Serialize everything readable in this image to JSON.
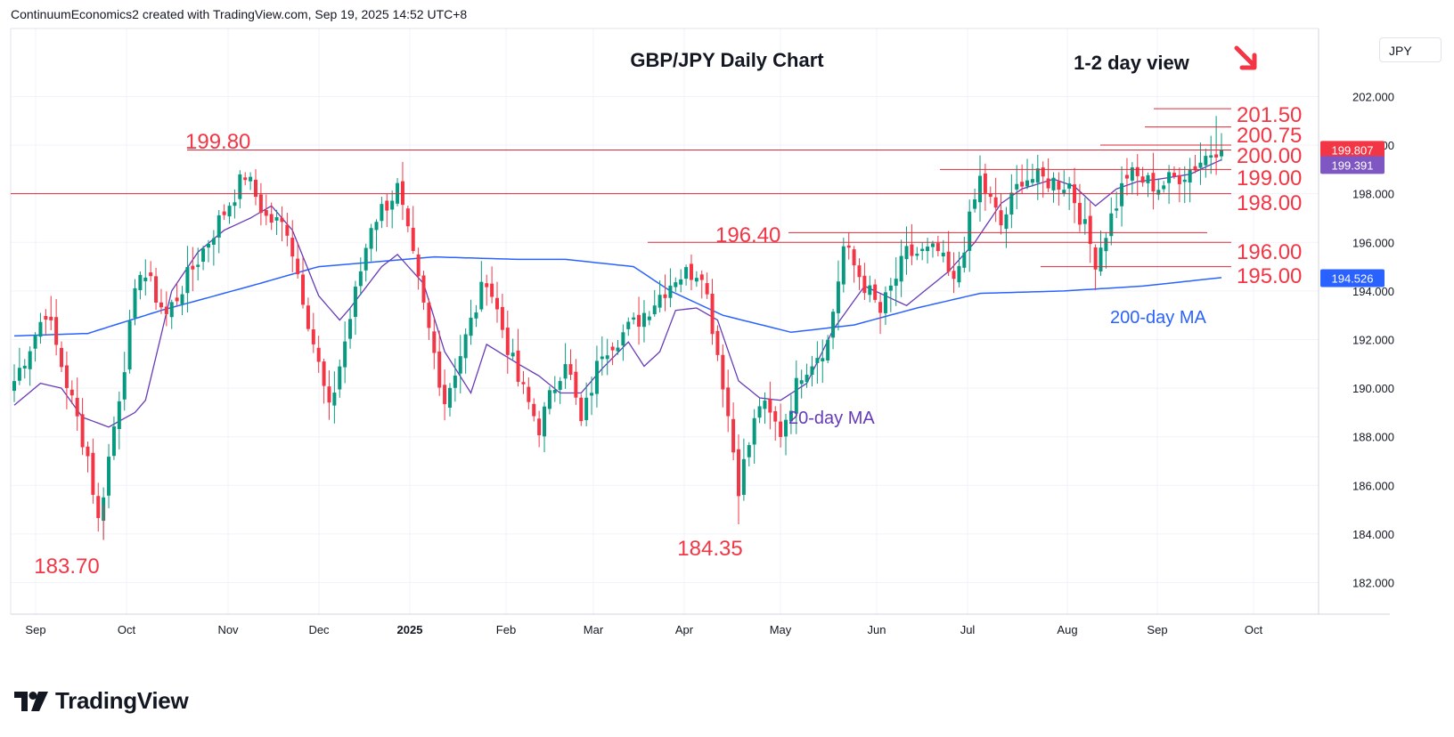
{
  "header": {
    "text": "ContinuumEconomics2 created with TradingView.com, Sep 19, 2025 14:52 UTC+8"
  },
  "footer": {
    "brand": "TradingView"
  },
  "currency_button": "JPY",
  "chart_data": {
    "type": "candlestick",
    "title": "GBP/JPY Daily Chart",
    "subtitle": "1-2 day view",
    "y_axis": {
      "ylim": [
        180.7,
        204.8
      ],
      "ticks": [
        "182.000",
        "184.000",
        "186.000",
        "188.000",
        "190.000",
        "192.000",
        "194.000",
        "196.000",
        "198.000",
        "200.000",
        "202.000"
      ],
      "side": "right"
    },
    "x_axis": {
      "labels": [
        "Sep",
        "Oct",
        "Nov",
        "Dec",
        "2025",
        "Feb",
        "Mar",
        "Apr",
        "May",
        "Jun",
        "Jul",
        "Aug",
        "Sep",
        "Oct"
      ]
    },
    "price_labels": [
      {
        "value": 199.807,
        "text": "199.807",
        "color": "#f23645"
      },
      {
        "value": 199.391,
        "text": "199.391",
        "color": "#7e57c2"
      },
      {
        "value": 194.526,
        "text": "194.526",
        "color": "#2962ff"
      }
    ],
    "levels": [
      {
        "value": 201.5,
        "label": "201.50"
      },
      {
        "value": 200.75,
        "label": "200.75"
      },
      {
        "value": 200.0,
        "label": "200.00"
      },
      {
        "value": 199.8,
        "label": "199.80"
      },
      {
        "value": 199.0,
        "label": "199.00"
      },
      {
        "value": 198.0,
        "label": "198.00"
      },
      {
        "value": 196.4,
        "label": "196.40"
      },
      {
        "value": 196.0,
        "label": "196.00"
      },
      {
        "value": 195.0,
        "label": "195.00"
      }
    ],
    "annotations": [
      {
        "text": "183.70",
        "value": 183.7
      },
      {
        "text": "184.35",
        "value": 184.35
      }
    ],
    "series": [
      {
        "name": "20-day MA",
        "color": "#673ab7"
      },
      {
        "name": "200-day MA",
        "color": "#2962ff"
      }
    ],
    "waypoints": [
      [
        0,
        190.3
      ],
      [
        6,
        193.2
      ],
      [
        14,
        187.2
      ],
      [
        16,
        184.5
      ],
      [
        24,
        195.0
      ],
      [
        29,
        193.0
      ],
      [
        44,
        198.8
      ],
      [
        48,
        197.0
      ],
      [
        52,
        196.6
      ],
      [
        55,
        193.8
      ],
      [
        60,
        189.0
      ],
      [
        68,
        196.8
      ],
      [
        73,
        198.2
      ],
      [
        78,
        193.3
      ],
      [
        82,
        189.5
      ],
      [
        90,
        194.6
      ],
      [
        96,
        190.3
      ],
      [
        100,
        188.4
      ],
      [
        105,
        191.3
      ],
      [
        108,
        188.5
      ],
      [
        112,
        191.6
      ],
      [
        118,
        192.6
      ],
      [
        126,
        194.6
      ],
      [
        131,
        194.9
      ],
      [
        135,
        190.3
      ],
      [
        138,
        186.0
      ],
      [
        142,
        189.4
      ],
      [
        146,
        188.2
      ],
      [
        150,
        190.7
      ],
      [
        155,
        191.9
      ],
      [
        158,
        195.8
      ],
      [
        165,
        193.1
      ],
      [
        170,
        195.5
      ],
      [
        176,
        195.6
      ],
      [
        179,
        194.2
      ],
      [
        184,
        198.6
      ],
      [
        188,
        196.7
      ],
      [
        192,
        198.7
      ],
      [
        201,
        198.4
      ],
      [
        206,
        195.3
      ],
      [
        212,
        198.8
      ],
      [
        218,
        198.3
      ],
      [
        224,
        199.0
      ],
      [
        230,
        200.1
      ]
    ],
    "ma20_knots": [
      [
        0,
        189.3
      ],
      [
        5,
        190.2
      ],
      [
        9,
        190.0
      ],
      [
        13,
        188.8
      ],
      [
        18,
        188.4
      ],
      [
        23,
        189.0
      ],
      [
        25,
        189.5
      ],
      [
        30,
        194.0
      ],
      [
        35,
        195.6
      ],
      [
        40,
        196.5
      ],
      [
        45,
        197.0
      ],
      [
        49,
        197.5
      ],
      [
        53,
        196.5
      ],
      [
        58,
        193.8
      ],
      [
        62,
        192.8
      ],
      [
        64,
        193.3
      ],
      [
        70,
        195.0
      ],
      [
        73,
        195.5
      ],
      [
        78,
        194.3
      ],
      [
        82,
        191.5
      ],
      [
        87,
        189.8
      ],
      [
        90,
        191.8
      ],
      [
        96,
        191.0
      ],
      [
        100,
        190.5
      ],
      [
        104,
        189.8
      ],
      [
        108,
        189.8
      ],
      [
        112,
        190.8
      ],
      [
        117,
        191.9
      ],
      [
        120,
        190.9
      ],
      [
        123,
        191.5
      ],
      [
        126,
        193.2
      ],
      [
        130,
        193.3
      ],
      [
        134,
        192.8
      ],
      [
        138,
        190.3
      ],
      [
        142,
        189.6
      ],
      [
        146,
        189.5
      ],
      [
        151,
        190.2
      ],
      [
        156,
        192.4
      ],
      [
        162,
        194.2
      ],
      [
        166,
        193.8
      ],
      [
        170,
        193.4
      ],
      [
        174,
        194.1
      ],
      [
        178,
        194.8
      ],
      [
        183,
        196.0
      ],
      [
        188,
        197.6
      ],
      [
        192,
        198.2
      ],
      [
        198,
        198.6
      ],
      [
        202,
        198.3
      ],
      [
        206,
        197.5
      ],
      [
        210,
        198.2
      ],
      [
        214,
        198.5
      ],
      [
        218,
        198.6
      ],
      [
        224,
        198.8
      ],
      [
        230,
        199.4
      ]
    ],
    "ma200_knots": [
      [
        0,
        192.15
      ],
      [
        14,
        192.25
      ],
      [
        28,
        193.2
      ],
      [
        45,
        194.2
      ],
      [
        58,
        195.0
      ],
      [
        80,
        195.4
      ],
      [
        96,
        195.3
      ],
      [
        105,
        195.3
      ],
      [
        118,
        195.0
      ],
      [
        125,
        194.0
      ],
      [
        135,
        193.0
      ],
      [
        148,
        192.3
      ],
      [
        160,
        192.6
      ],
      [
        172,
        193.3
      ],
      [
        184,
        193.9
      ],
      [
        200,
        194.0
      ],
      [
        215,
        194.2
      ],
      [
        230,
        194.55
      ]
    ]
  }
}
